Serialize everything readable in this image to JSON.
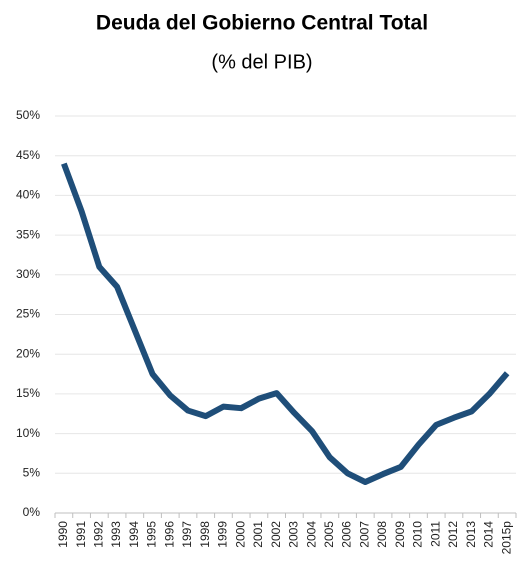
{
  "chart_data": {
    "type": "line",
    "title": "Deuda del Gobierno Central Total",
    "subtitle": "(% del PIB)",
    "categories": [
      "1990",
      "1991",
      "1992",
      "1993",
      "1994",
      "1995",
      "1996",
      "1997",
      "1998",
      "1999",
      "2000",
      "2001",
      "2002",
      "2003",
      "2004",
      "2005",
      "2006",
      "2007",
      "2008",
      "2009",
      "2010",
      "2011",
      "2012",
      "2013",
      "2014",
      "2015p"
    ],
    "series": [
      {
        "name": "Deuda del Gobierno Central Total",
        "color": "#1f4e79",
        "values": [
          44.0,
          38.0,
          31.0,
          28.5,
          23.0,
          17.5,
          14.8,
          12.9,
          12.2,
          13.4,
          13.2,
          14.4,
          15.1,
          12.6,
          10.3,
          7.0,
          5.0,
          3.9,
          4.9,
          5.8,
          8.6,
          11.1,
          12.0,
          12.8,
          15.0,
          17.6
        ]
      }
    ],
    "ylim": [
      0,
      50
    ],
    "yticks": [
      {
        "value": 0,
        "label": "0%"
      },
      {
        "value": 5,
        "label": "5%"
      },
      {
        "value": 10,
        "label": "10%"
      },
      {
        "value": 15,
        "label": "15%"
      },
      {
        "value": 20,
        "label": "20%"
      },
      {
        "value": 25,
        "label": "25%"
      },
      {
        "value": 30,
        "label": "30%"
      },
      {
        "value": 35,
        "label": "35%"
      },
      {
        "value": 40,
        "label": "40%"
      },
      {
        "value": 45,
        "label": "45%"
      },
      {
        "value": 50,
        "label": "50%"
      }
    ],
    "grid": true
  }
}
